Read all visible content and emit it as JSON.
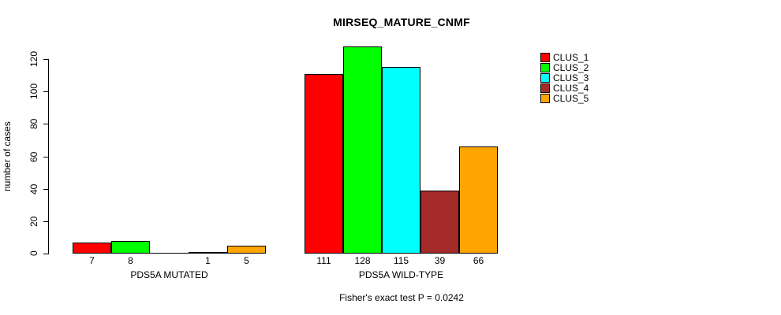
{
  "chart_data": {
    "type": "bar",
    "title": "MIRSEQ_MATURE_CNMF",
    "ylabel": "number of cases",
    "xlabel": "",
    "annotation": "Fisher's exact test P = 0.0242",
    "categories": [
      "PDS5A MUTATED",
      "PDS5A WILD-TYPE"
    ],
    "series": [
      {
        "name": "CLUS_1",
        "color": "#FF0000",
        "values": [
          7,
          111
        ]
      },
      {
        "name": "CLUS_2",
        "color": "#00FF00",
        "values": [
          8,
          128
        ]
      },
      {
        "name": "CLUS_3",
        "color": "#00FFFF",
        "values": [
          0,
          115
        ]
      },
      {
        "name": "CLUS_4",
        "color": "#A52A2A",
        "values": [
          1,
          39
        ]
      },
      {
        "name": "CLUS_5",
        "color": "#FFA500",
        "values": [
          5,
          66
        ]
      }
    ],
    "bar_value_labels": [
      [
        "7",
        "8",
        "",
        "1",
        "5"
      ],
      [
        "111",
        "128",
        "115",
        "39",
        "66"
      ]
    ],
    "yticks": [
      0,
      20,
      40,
      60,
      80,
      100,
      120
    ],
    "ylim": [
      0,
      130
    ],
    "grid": false,
    "legend_position": "right-outside",
    "bar_border_color": "#000000",
    "background_color": "#FFFFFF"
  }
}
